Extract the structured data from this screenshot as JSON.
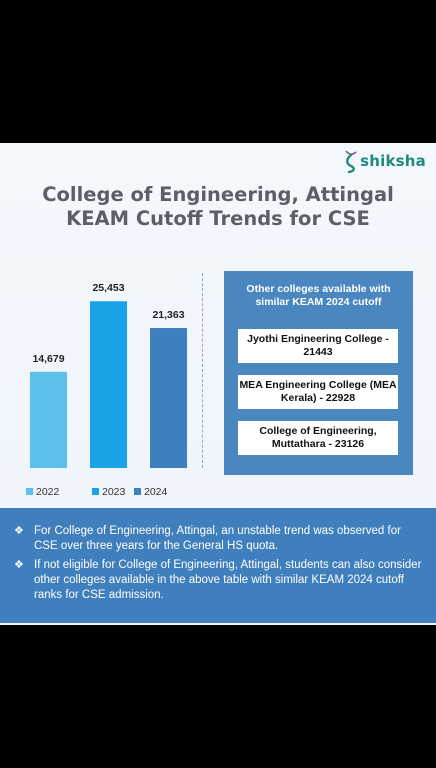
{
  "brand": {
    "name": "shiksha"
  },
  "title": "College of Engineering, Attingal KEAM Cutoff Trends for CSE",
  "chart_data": {
    "type": "bar",
    "categories": [
      "2022",
      "2023",
      "2024"
    ],
    "values": [
      14679,
      25453,
      21363
    ],
    "labels": [
      "14,679",
      "25,453",
      "21,363"
    ],
    "colors": [
      "#5bc0eb",
      "#1aa3e8",
      "#3e7fbf"
    ],
    "legend": [
      "2022",
      "2023",
      "2024"
    ],
    "legend_position": "bottom",
    "ylim": [
      0,
      29000
    ],
    "grid": false,
    "xlabel": "",
    "ylabel": ""
  },
  "panel": {
    "title": "Other colleges available with similar KEAM 2024 cutoff",
    "colleges": [
      "Jyothi Engineering College - 21443",
      "MEA Engineering College (MEA Kerala) - 22928",
      "College of Engineering, Muttathara - 23126"
    ]
  },
  "notes": [
    "For College of Engineering, Attingal, an unstable trend was observed for CSE over three years for the General HS quota.",
    "If not eligible for College of Engineering, Attingal, students can also consider other colleges available in the above table with similar KEAM 2024 cutoff ranks for CSE admission."
  ],
  "bullet_symbol": "❖"
}
